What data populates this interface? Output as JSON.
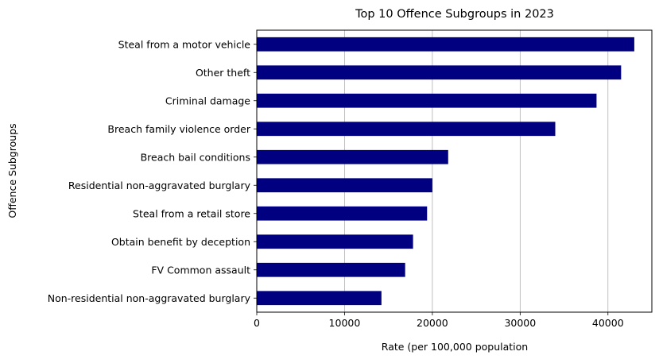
{
  "chart_data": {
    "type": "bar",
    "orientation": "horizontal",
    "title": "Top 10 Offence Subgroups in 2023",
    "xlabel": "Rate (per 100,000 population",
    "ylabel": "Offence Subgroups",
    "categories": [
      "Steal from a motor vehicle",
      "Other theft",
      "Criminal damage",
      "Breach family violence order",
      "Breach bail conditions",
      "Residential non-aggravated burglary",
      "Steal from a retail store",
      "Obtain benefit by deception",
      "FV Common assault",
      "Non-residential non-aggravated burglary"
    ],
    "values": [
      43000,
      41500,
      38700,
      34000,
      21800,
      20000,
      19400,
      17800,
      16900,
      14200
    ],
    "xlim": [
      0,
      45000
    ],
    "xticks": [
      0,
      10000,
      20000,
      30000,
      40000
    ],
    "grid": "x-axis vertical lines",
    "bar_color": "#000080"
  }
}
